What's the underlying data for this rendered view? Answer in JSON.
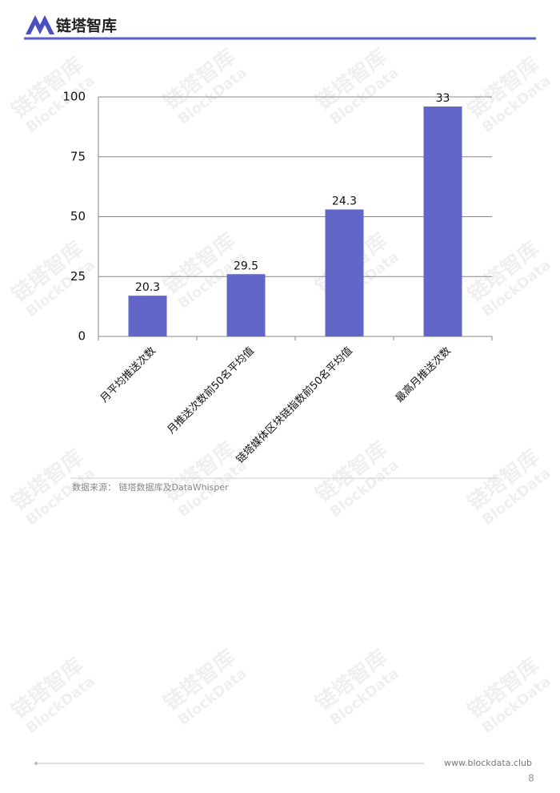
{
  "header": {
    "title": "链塔智库"
  },
  "watermark": {
    "title": "链塔智库",
    "subtitle": "BlockData"
  },
  "chart_data": {
    "type": "bar",
    "categories": [
      "月平均推送次数",
      "月推送次数前50名平均值",
      "链塔媒体区块链指数前50名平均值",
      "最高月推送次数"
    ],
    "values": [
      17,
      26,
      53,
      96
    ],
    "annotations": [
      "20.3",
      "29.5",
      "24.3",
      "33"
    ],
    "color": "#6266c8",
    "ylim": [
      0,
      100
    ],
    "yticks": [
      0,
      25,
      50,
      75,
      100
    ],
    "grid": true
  },
  "source": "数据来源：  链塔数据库及DataWhisper",
  "footer": {
    "url": "www.blockdata.club",
    "page": "8"
  }
}
